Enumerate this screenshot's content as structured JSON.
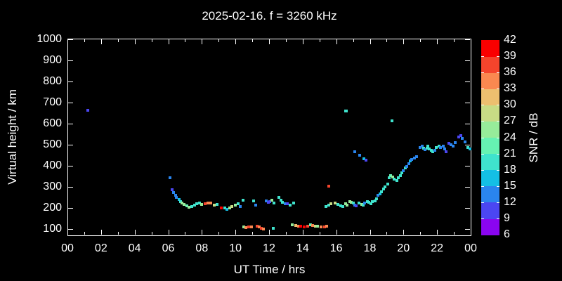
{
  "chart_data": {
    "type": "scatter",
    "title": "2025-02-16. f = 3260 kHz",
    "xlabel": "UT Time / hrs",
    "ylabel": "Virtual height / km",
    "colorbar_label": "SNR / dB",
    "background_color": "#000000",
    "axis_color": "#ffffff",
    "grid": false,
    "x_range_hours": [
      0,
      24
    ],
    "x_major_tick_step_hours": 2,
    "x_minor_tick_step_hours": 1,
    "x_tick_labels": [
      "00",
      "02",
      "04",
      "06",
      "08",
      "10",
      "12",
      "14",
      "16",
      "18",
      "20",
      "22",
      "00"
    ],
    "y_range_km": [
      70,
      1000
    ],
    "y_tick_values": [
      100,
      200,
      300,
      400,
      500,
      600,
      700,
      800,
      900,
      1000
    ],
    "colorbar": {
      "min": 6,
      "max": 42,
      "step": 3,
      "tick_values": [
        6,
        9,
        12,
        15,
        18,
        21,
        24,
        27,
        30,
        33,
        36,
        39,
        42
      ],
      "segment_colors_bottom_to_top": [
        "#8A05F0",
        "#4B46F2",
        "#2A85EE",
        "#14BFE5",
        "#3FE3CD",
        "#66F2B2",
        "#97EC9A",
        "#C8DC85",
        "#EDBF6F",
        "#FA8850",
        "#F4442C",
        "#FA0000"
      ]
    },
    "points_format": [
      "ut_hours",
      "virtual_height_km",
      "snr_db"
    ],
    "points": [
      [
        1.2,
        663,
        10
      ],
      [
        6.1,
        345,
        13
      ],
      [
        6.25,
        287,
        10
      ],
      [
        6.33,
        273,
        13
      ],
      [
        6.42,
        260,
        13
      ],
      [
        6.5,
        250,
        13
      ],
      [
        6.63,
        240,
        16
      ],
      [
        6.75,
        230,
        19
      ],
      [
        6.83,
        223,
        25
      ],
      [
        6.95,
        217,
        25
      ],
      [
        7.1,
        210,
        22
      ],
      [
        7.25,
        203,
        25
      ],
      [
        7.4,
        207,
        19
      ],
      [
        7.55,
        213,
        19
      ],
      [
        7.7,
        220,
        19
      ],
      [
        7.85,
        223,
        19
      ],
      [
        8.0,
        217,
        25
      ],
      [
        8.2,
        220,
        37
      ],
      [
        8.35,
        223,
        34
      ],
      [
        8.55,
        223,
        34
      ],
      [
        8.75,
        213,
        28
      ],
      [
        8.9,
        217,
        19
      ],
      [
        9.15,
        200,
        40
      ],
      [
        9.35,
        200,
        19
      ],
      [
        9.5,
        193,
        16
      ],
      [
        9.65,
        200,
        25
      ],
      [
        9.8,
        207,
        28
      ],
      [
        10.0,
        213,
        25
      ],
      [
        10.15,
        220,
        19
      ],
      [
        10.3,
        207,
        13
      ],
      [
        10.45,
        237,
        19
      ],
      [
        11.1,
        233,
        19
      ],
      [
        11.2,
        213,
        13
      ],
      [
        11.85,
        233,
        13
      ],
      [
        11.95,
        227,
        10
      ],
      [
        12.05,
        230,
        10
      ],
      [
        12.15,
        237,
        25
      ],
      [
        12.3,
        223,
        19
      ],
      [
        12.6,
        250,
        19
      ],
      [
        12.7,
        237,
        19
      ],
      [
        12.8,
        227,
        19
      ],
      [
        12.95,
        220,
        13
      ],
      [
        13.1,
        220,
        10
      ],
      [
        13.25,
        213,
        19
      ],
      [
        13.45,
        223,
        19
      ],
      [
        10.5,
        110,
        25
      ],
      [
        10.6,
        107,
        34
      ],
      [
        10.8,
        110,
        37
      ],
      [
        10.95,
        110,
        34
      ],
      [
        11.3,
        113,
        37
      ],
      [
        11.4,
        110,
        34
      ],
      [
        11.55,
        103,
        37
      ],
      [
        11.65,
        100,
        34
      ],
      [
        12.25,
        103,
        19
      ],
      [
        13.4,
        120,
        25
      ],
      [
        13.6,
        117,
        31
      ],
      [
        13.75,
        113,
        34
      ],
      [
        13.9,
        113,
        40
      ],
      [
        14.1,
        110,
        40
      ],
      [
        14.3,
        113,
        37
      ],
      [
        14.45,
        120,
        22
      ],
      [
        14.6,
        117,
        34
      ],
      [
        14.75,
        113,
        28
      ],
      [
        14.9,
        113,
        25
      ],
      [
        15.1,
        110,
        34
      ],
      [
        15.3,
        110,
        37
      ],
      [
        15.42,
        113,
        34
      ],
      [
        15.55,
        303,
        37
      ],
      [
        15.4,
        207,
        19
      ],
      [
        15.55,
        213,
        19
      ],
      [
        15.7,
        220,
        28
      ],
      [
        15.95,
        223,
        28
      ],
      [
        16.1,
        217,
        19
      ],
      [
        16.25,
        210,
        19
      ],
      [
        16.4,
        207,
        19
      ],
      [
        16.55,
        220,
        25
      ],
      [
        16.65,
        213,
        25
      ],
      [
        16.8,
        230,
        25
      ],
      [
        16.9,
        227,
        25
      ],
      [
        17.0,
        223,
        19
      ],
      [
        17.1,
        213,
        13
      ],
      [
        17.2,
        210,
        10
      ],
      [
        17.35,
        223,
        19
      ],
      [
        17.5,
        217,
        25
      ],
      [
        17.6,
        213,
        19
      ],
      [
        17.7,
        223,
        13
      ],
      [
        17.85,
        230,
        19
      ],
      [
        17.95,
        227,
        19
      ],
      [
        18.05,
        220,
        19
      ],
      [
        18.15,
        230,
        19
      ],
      [
        18.3,
        233,
        19
      ],
      [
        16.55,
        660,
        19
      ],
      [
        16.62,
        660,
        19
      ],
      [
        19.3,
        613,
        19
      ],
      [
        17.1,
        467,
        13
      ],
      [
        17.4,
        450,
        13
      ],
      [
        17.65,
        433,
        16
      ],
      [
        17.75,
        427,
        10
      ],
      [
        18.4,
        243,
        19
      ],
      [
        18.5,
        260,
        13
      ],
      [
        18.6,
        267,
        16
      ],
      [
        18.7,
        277,
        19
      ],
      [
        18.8,
        290,
        19
      ],
      [
        18.9,
        300,
        19
      ],
      [
        19.05,
        313,
        19
      ],
      [
        19.15,
        343,
        19
      ],
      [
        19.25,
        353,
        22
      ],
      [
        19.35,
        347,
        25
      ],
      [
        19.45,
        337,
        19
      ],
      [
        19.6,
        330,
        19
      ],
      [
        19.7,
        343,
        19
      ],
      [
        19.8,
        353,
        19
      ],
      [
        19.9,
        367,
        19
      ],
      [
        20.0,
        377,
        13
      ],
      [
        20.1,
        390,
        19
      ],
      [
        20.2,
        397,
        13
      ],
      [
        20.3,
        410,
        13
      ],
      [
        20.4,
        423,
        16
      ],
      [
        20.5,
        430,
        13
      ],
      [
        20.65,
        437,
        13
      ],
      [
        20.8,
        443,
        13
      ],
      [
        21.0,
        487,
        13
      ],
      [
        21.1,
        493,
        13
      ],
      [
        21.2,
        483,
        19
      ],
      [
        21.3,
        477,
        13
      ],
      [
        21.4,
        483,
        19
      ],
      [
        21.45,
        493,
        19
      ],
      [
        21.55,
        480,
        19
      ],
      [
        21.65,
        473,
        19
      ],
      [
        21.75,
        467,
        19
      ],
      [
        21.85,
        473,
        13
      ],
      [
        21.95,
        487,
        19
      ],
      [
        22.1,
        493,
        19
      ],
      [
        22.2,
        487,
        13
      ],
      [
        22.35,
        493,
        13
      ],
      [
        22.45,
        480,
        13
      ],
      [
        22.55,
        467,
        10
      ],
      [
        22.7,
        507,
        10
      ],
      [
        22.85,
        500,
        13
      ],
      [
        22.95,
        493,
        13
      ],
      [
        23.1,
        510,
        13
      ],
      [
        23.3,
        537,
        10
      ],
      [
        23.4,
        543,
        10
      ],
      [
        23.5,
        530,
        13
      ],
      [
        23.65,
        513,
        13
      ],
      [
        23.85,
        487,
        19
      ],
      [
        23.95,
        480,
        16
      ]
    ]
  }
}
